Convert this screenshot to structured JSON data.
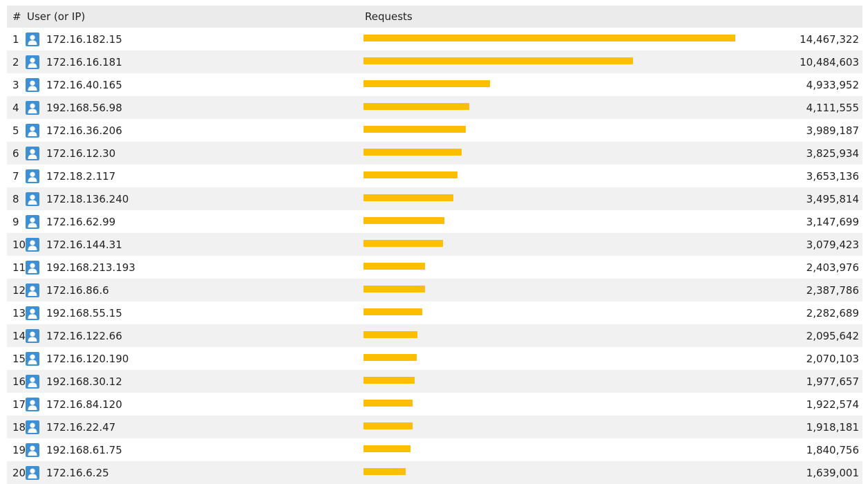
{
  "header": {
    "num": "#",
    "user": "User (or IP)",
    "requests": "Requests"
  },
  "colors": {
    "bar": "#fbbe00",
    "icon": "#3d8fd6",
    "row_alt": "#f1f1f1",
    "header_bg": "#ebebeb"
  },
  "icon": "user-icon",
  "max_requests": 14467322,
  "rows": [
    {
      "rank": "1",
      "user": "172.16.182.15",
      "requests": 14467322,
      "requests_label": "14,467,322"
    },
    {
      "rank": "2",
      "user": "172.16.16.181",
      "requests": 10484603,
      "requests_label": "10,484,603"
    },
    {
      "rank": "3",
      "user": "172.16.40.165",
      "requests": 4933952,
      "requests_label": "4,933,952"
    },
    {
      "rank": "4",
      "user": "192.168.56.98",
      "requests": 4111555,
      "requests_label": "4,111,555"
    },
    {
      "rank": "5",
      "user": "172.16.36.206",
      "requests": 3989187,
      "requests_label": "3,989,187"
    },
    {
      "rank": "6",
      "user": "172.16.12.30",
      "requests": 3825934,
      "requests_label": "3,825,934"
    },
    {
      "rank": "7",
      "user": "172.18.2.117",
      "requests": 3653136,
      "requests_label": "3,653,136"
    },
    {
      "rank": "8",
      "user": "172.18.136.240",
      "requests": 3495814,
      "requests_label": "3,495,814"
    },
    {
      "rank": "9",
      "user": "172.16.62.99",
      "requests": 3147699,
      "requests_label": "3,147,699"
    },
    {
      "rank": "10",
      "user": "172.16.144.31",
      "requests": 3079423,
      "requests_label": "3,079,423"
    },
    {
      "rank": "11",
      "user": "192.168.213.193",
      "requests": 2403976,
      "requests_label": "2,403,976"
    },
    {
      "rank": "12",
      "user": "172.16.86.6",
      "requests": 2387786,
      "requests_label": "2,387,786"
    },
    {
      "rank": "13",
      "user": "192.168.55.15",
      "requests": 2282689,
      "requests_label": "2,282,689"
    },
    {
      "rank": "14",
      "user": "172.16.122.66",
      "requests": 2095642,
      "requests_label": "2,095,642"
    },
    {
      "rank": "15",
      "user": "172.16.120.190",
      "requests": 2070103,
      "requests_label": "2,070,103"
    },
    {
      "rank": "16",
      "user": "192.168.30.12",
      "requests": 1977657,
      "requests_label": "1,977,657"
    },
    {
      "rank": "17",
      "user": "172.16.84.120",
      "requests": 1922574,
      "requests_label": "1,922,574"
    },
    {
      "rank": "18",
      "user": "172.16.22.47",
      "requests": 1918181,
      "requests_label": "1,918,181"
    },
    {
      "rank": "19",
      "user": "192.168.61.75",
      "requests": 1840756,
      "requests_label": "1,840,756"
    },
    {
      "rank": "20",
      "user": "172.16.6.25",
      "requests": 1639001,
      "requests_label": "1,639,001"
    }
  ]
}
